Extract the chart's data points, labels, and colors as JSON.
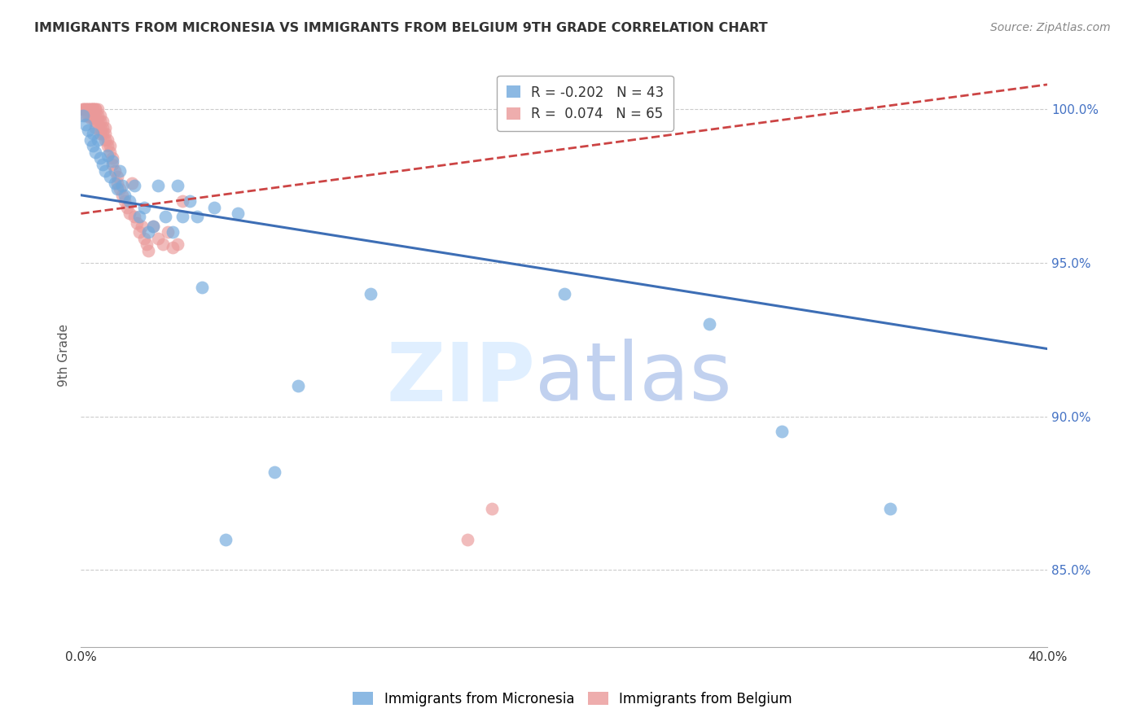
{
  "title": "IMMIGRANTS FROM MICRONESIA VS IMMIGRANTS FROM BELGIUM 9TH GRADE CORRELATION CHART",
  "source": "Source: ZipAtlas.com",
  "ylabel": "9th Grade",
  "xlim": [
    0.0,
    0.4
  ],
  "ylim": [
    0.825,
    1.015
  ],
  "yticks": [
    0.85,
    0.9,
    0.95,
    1.0
  ],
  "ytick_labels": [
    "85.0%",
    "90.0%",
    "95.0%",
    "100.0%"
  ],
  "xticks": [
    0.0,
    0.05,
    0.1,
    0.15,
    0.2,
    0.25,
    0.3,
    0.35,
    0.4
  ],
  "xtick_labels": [
    "0.0%",
    "",
    "",
    "",
    "",
    "",
    "",
    "",
    "40.0%"
  ],
  "micronesia_label": "Immigrants from Micronesia",
  "belgium_label": "Immigrants from Belgium",
  "micronesia_R": -0.202,
  "micronesia_N": 43,
  "belgium_R": 0.074,
  "belgium_N": 65,
  "micronesia_color": "#6fa8dc",
  "belgium_color": "#ea9999",
  "micronesia_line_color": "#3d6eb5",
  "belgium_line_color": "#cc4444",
  "mic_line_x0": 0.0,
  "mic_line_y0": 0.972,
  "mic_line_x1": 0.4,
  "mic_line_y1": 0.922,
  "bel_line_x0": 0.0,
  "bel_line_y0": 0.966,
  "bel_line_x1": 0.4,
  "bel_line_y1": 1.008,
  "micronesia_x": [
    0.001,
    0.002,
    0.003,
    0.004,
    0.005,
    0.005,
    0.006,
    0.007,
    0.008,
    0.009,
    0.01,
    0.011,
    0.012,
    0.013,
    0.014,
    0.015,
    0.016,
    0.017,
    0.018,
    0.02,
    0.022,
    0.024,
    0.026,
    0.028,
    0.03,
    0.032,
    0.035,
    0.038,
    0.04,
    0.042,
    0.045,
    0.048,
    0.05,
    0.055,
    0.06,
    0.065,
    0.08,
    0.09,
    0.12,
    0.2,
    0.26,
    0.29,
    0.335
  ],
  "micronesia_y": [
    0.998,
    0.995,
    0.993,
    0.99,
    0.992,
    0.988,
    0.986,
    0.99,
    0.984,
    0.982,
    0.98,
    0.985,
    0.978,
    0.983,
    0.976,
    0.974,
    0.98,
    0.975,
    0.972,
    0.97,
    0.975,
    0.965,
    0.968,
    0.96,
    0.962,
    0.975,
    0.965,
    0.96,
    0.975,
    0.965,
    0.97,
    0.965,
    0.942,
    0.968,
    0.86,
    0.966,
    0.882,
    0.91,
    0.94,
    0.94,
    0.93,
    0.895,
    0.87
  ],
  "belgium_x": [
    0.001,
    0.001,
    0.002,
    0.002,
    0.002,
    0.003,
    0.003,
    0.003,
    0.004,
    0.004,
    0.004,
    0.005,
    0.005,
    0.005,
    0.005,
    0.005,
    0.006,
    0.006,
    0.006,
    0.006,
    0.006,
    0.007,
    0.007,
    0.007,
    0.008,
    0.008,
    0.008,
    0.008,
    0.009,
    0.009,
    0.009,
    0.01,
    0.01,
    0.01,
    0.011,
    0.011,
    0.012,
    0.012,
    0.013,
    0.013,
    0.014,
    0.015,
    0.015,
    0.016,
    0.017,
    0.018,
    0.019,
    0.02,
    0.021,
    0.022,
    0.023,
    0.024,
    0.025,
    0.026,
    0.027,
    0.028,
    0.03,
    0.032,
    0.034,
    0.036,
    0.038,
    0.04,
    0.042,
    0.16,
    0.17
  ],
  "belgium_y": [
    1.0,
    1.0,
    1.0,
    1.0,
    0.998,
    1.0,
    1.0,
    0.998,
    1.0,
    1.0,
    0.997,
    1.0,
    1.0,
    1.0,
    0.998,
    0.997,
    1.0,
    1.0,
    0.998,
    0.996,
    0.994,
    1.0,
    0.998,
    0.996,
    0.998,
    0.996,
    0.994,
    0.992,
    0.996,
    0.994,
    0.992,
    0.994,
    0.992,
    0.99,
    0.99,
    0.988,
    0.988,
    0.986,
    0.984,
    0.982,
    0.98,
    0.978,
    0.976,
    0.974,
    0.972,
    0.97,
    0.968,
    0.966,
    0.976,
    0.965,
    0.963,
    0.96,
    0.962,
    0.958,
    0.956,
    0.954,
    0.962,
    0.958,
    0.956,
    0.96,
    0.955,
    0.956,
    0.97,
    0.86,
    0.87
  ]
}
